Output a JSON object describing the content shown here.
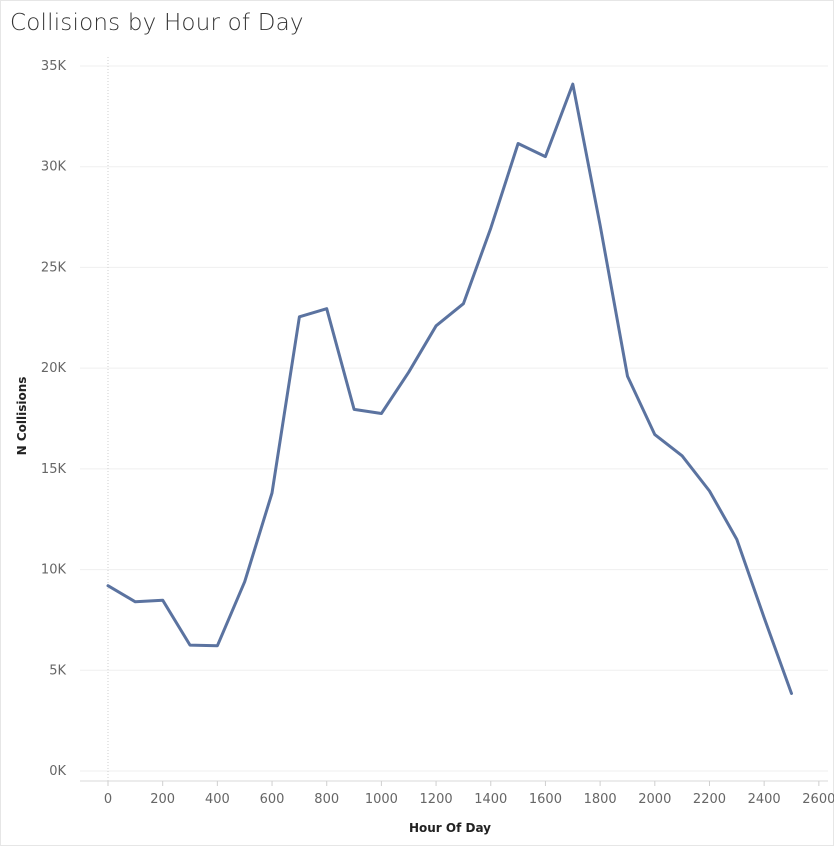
{
  "chart_data": {
    "type": "line",
    "title": "Collisions by Hour of Day",
    "xlabel": "Hour Of Day",
    "ylabel": "N Collisions",
    "xlim": [
      -120,
      2620
    ],
    "ylim": [
      0,
      35000
    ],
    "x_ticks": [
      0,
      200,
      400,
      600,
      800,
      1000,
      1200,
      1400,
      1600,
      1800,
      2000,
      2200,
      2400,
      2600
    ],
    "y_ticks": [
      0,
      5000,
      10000,
      15000,
      20000,
      25000,
      30000,
      35000
    ],
    "y_tick_labels": [
      "0K",
      "5K",
      "10K",
      "15K",
      "20K",
      "25K",
      "30K",
      "35K"
    ],
    "grid": true,
    "line_color": "#5b73a0",
    "x": [
      0,
      100,
      200,
      300,
      400,
      500,
      600,
      700,
      800,
      900,
      1000,
      1100,
      1200,
      1300,
      1400,
      1500,
      1600,
      1700,
      1800,
      1900,
      2000,
      2100,
      2200,
      2300,
      2400,
      2500
    ],
    "values": [
      9200,
      8400,
      8480,
      6250,
      6220,
      9400,
      13800,
      22550,
      22950,
      17950,
      17750,
      19800,
      22100,
      23200,
      26950,
      31150,
      30500,
      34100,
      27100,
      19600,
      16700,
      15650,
      13900,
      11500,
      7600,
      3850
    ]
  }
}
